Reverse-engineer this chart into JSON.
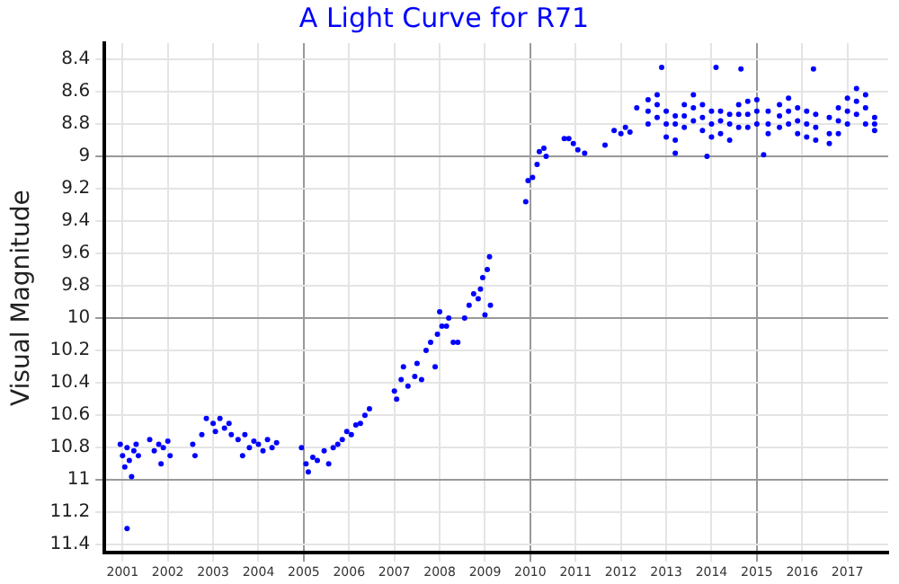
{
  "chart_data": {
    "type": "scatter",
    "title": "A Light Curve for R71",
    "ylabel": "Visual Magnitude",
    "xlim": [
      2000.6,
      2017.9
    ],
    "xticks": [
      2001,
      2002,
      2003,
      2004,
      2005,
      2006,
      2007,
      2008,
      2009,
      2010,
      2011,
      2012,
      2013,
      2014,
      2015,
      2016,
      2017
    ],
    "ylim": [
      11.45,
      8.3
    ],
    "yticks": [
      8.4,
      8.6,
      8.8,
      9,
      9.2,
      9.4,
      9.6,
      9.8,
      10,
      10.2,
      10.4,
      10.6,
      10.8,
      11,
      11.2,
      11.4
    ],
    "grid": true,
    "legend": false,
    "marker": "circle",
    "series": [
      {
        "color": "#0000ff",
        "x": [
          2000.95,
          2001.0,
          2001.05,
          2001.1,
          2001.15,
          2001.2,
          2001.25,
          2001.3,
          2001.1,
          2001.35,
          2001.6,
          2001.7,
          2001.8,
          2001.85,
          2001.9,
          2002.0,
          2002.05,
          2002.55,
          2002.6,
          2002.75,
          2002.85,
          2003.0,
          2003.05,
          2003.15,
          2003.25,
          2003.35,
          2003.4,
          2003.55,
          2003.65,
          2003.7,
          2003.8,
          2003.9,
          2004.0,
          2004.1,
          2004.2,
          2004.3,
          2004.4,
          2004.95,
          2005.05,
          2005.1,
          2005.2,
          2005.3,
          2005.45,
          2005.55,
          2005.65,
          2005.75,
          2005.85,
          2005.95,
          2006.05,
          2006.15,
          2006.25,
          2006.35,
          2006.45,
          2007.0,
          2007.05,
          2007.15,
          2007.2,
          2007.3,
          2007.45,
          2007.5,
          2007.6,
          2007.7,
          2007.8,
          2007.9,
          2007.95,
          2008.0,
          2008.05,
          2008.15,
          2008.2,
          2008.3,
          2008.4,
          2008.55,
          2008.65,
          2008.75,
          2008.85,
          2008.9,
          2008.95,
          2009.0,
          2009.05,
          2009.1,
          2009.12,
          2009.9,
          2009.95,
          2010.05,
          2010.15,
          2010.2,
          2010.3,
          2010.35,
          2010.75,
          2010.85,
          2010.95,
          2011.05,
          2011.2,
          2011.65,
          2011.85,
          2012.0,
          2012.1,
          2012.2,
          2012.35,
          2012.6,
          2012.6,
          2012.6,
          2012.8,
          2012.8,
          2012.8,
          2013.0,
          2013.0,
          2013.0,
          2013.2,
          2013.2,
          2013.2,
          2013.4,
          2013.4,
          2013.4,
          2013.6,
          2013.6,
          2013.6,
          2013.8,
          2013.8,
          2013.8,
          2014.0,
          2014.0,
          2014.0,
          2014.2,
          2014.2,
          2014.2,
          2014.4,
          2014.4,
          2014.4,
          2014.6,
          2014.6,
          2014.6,
          2014.8,
          2014.8,
          2014.8,
          2015.0,
          2015.0,
          2015.0,
          2015.25,
          2015.25,
          2015.25,
          2015.5,
          2015.5,
          2015.5,
          2015.7,
          2015.7,
          2015.7,
          2015.9,
          2015.9,
          2015.9,
          2016.1,
          2016.1,
          2016.1,
          2016.3,
          2016.3,
          2016.3,
          2016.6,
          2016.6,
          2016.6,
          2016.8,
          2016.8,
          2016.8,
          2017.0,
          2017.0,
          2017.0,
          2017.2,
          2017.2,
          2017.2,
          2017.4,
          2017.4,
          2017.4,
          2017.6,
          2017.6,
          2017.6,
          2012.9,
          2014.1,
          2014.65,
          2016.25,
          2013.9,
          2015.15,
          2013.2
        ],
        "values": [
          10.78,
          10.85,
          10.92,
          10.8,
          10.88,
          10.98,
          10.82,
          10.78,
          11.3,
          10.85,
          10.75,
          10.82,
          10.78,
          10.9,
          10.8,
          10.76,
          10.85,
          10.78,
          10.85,
          10.72,
          10.62,
          10.65,
          10.7,
          10.62,
          10.68,
          10.65,
          10.72,
          10.75,
          10.85,
          10.72,
          10.8,
          10.76,
          10.78,
          10.82,
          10.75,
          10.8,
          10.77,
          10.8,
          10.9,
          10.95,
          10.86,
          10.88,
          10.82,
          10.9,
          10.8,
          10.78,
          10.75,
          10.7,
          10.72,
          10.66,
          10.65,
          10.6,
          10.56,
          10.45,
          10.5,
          10.38,
          10.3,
          10.42,
          10.36,
          10.28,
          10.38,
          10.2,
          10.15,
          10.3,
          10.1,
          9.96,
          10.05,
          10.05,
          10.0,
          10.15,
          10.15,
          10.0,
          9.92,
          9.85,
          9.88,
          9.82,
          9.75,
          9.98,
          9.7,
          9.62,
          9.92,
          9.28,
          9.15,
          9.13,
          9.05,
          8.97,
          8.95,
          9.0,
          8.89,
          8.89,
          8.92,
          8.96,
          8.98,
          8.93,
          8.84,
          8.86,
          8.82,
          8.85,
          8.7,
          8.65,
          8.72,
          8.8,
          8.68,
          8.76,
          8.62,
          8.72,
          8.8,
          8.88,
          8.8,
          8.9,
          8.75,
          8.75,
          8.68,
          8.82,
          8.62,
          8.7,
          8.78,
          8.68,
          8.76,
          8.84,
          8.72,
          8.8,
          8.88,
          8.78,
          8.86,
          8.72,
          8.8,
          8.9,
          8.74,
          8.74,
          8.82,
          8.68,
          8.66,
          8.74,
          8.82,
          8.65,
          8.72,
          8.8,
          8.72,
          8.8,
          8.86,
          8.68,
          8.75,
          8.82,
          8.64,
          8.72,
          8.8,
          8.7,
          8.78,
          8.86,
          8.72,
          8.8,
          8.88,
          8.74,
          8.82,
          8.9,
          8.76,
          8.86,
          8.92,
          8.7,
          8.78,
          8.86,
          8.64,
          8.72,
          8.8,
          8.58,
          8.66,
          8.74,
          8.62,
          8.7,
          8.8,
          8.76,
          8.8,
          8.84,
          8.45,
          8.45,
          8.46,
          8.46,
          9.0,
          8.99,
          8.98
        ]
      }
    ]
  }
}
